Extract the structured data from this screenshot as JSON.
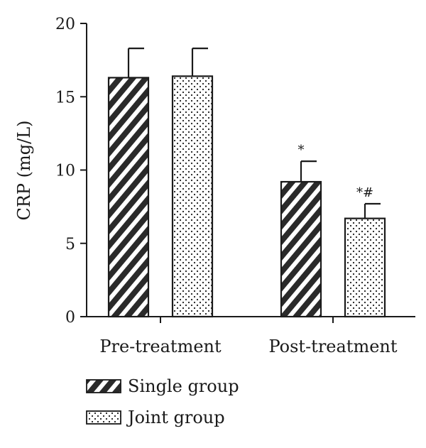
{
  "chart_data": {
    "type": "bar",
    "title": "",
    "xlabel": "",
    "ylabel": "CRP (mg/L)",
    "ylim": [
      0,
      20
    ],
    "yticks": [
      "0",
      "5",
      "10",
      "15",
      "20"
    ],
    "categories": [
      "Pre-treatment",
      "Post-treatment"
    ],
    "series": [
      {
        "name": "Single group",
        "pattern": "hatch",
        "values": [
          16.3,
          9.2
        ],
        "errors": [
          2.0,
          1.4
        ],
        "annotations": [
          "",
          "*"
        ]
      },
      {
        "name": "Joint group",
        "pattern": "dots",
        "values": [
          16.4,
          6.7
        ],
        "errors": [
          1.9,
          1.0
        ],
        "annotations": [
          "",
          "*#"
        ]
      }
    ],
    "legend_position": "bottom-left",
    "grid": false,
    "colors": {
      "bar_stroke": "#1a1a1a",
      "bar_fill": "#ffffff"
    }
  }
}
